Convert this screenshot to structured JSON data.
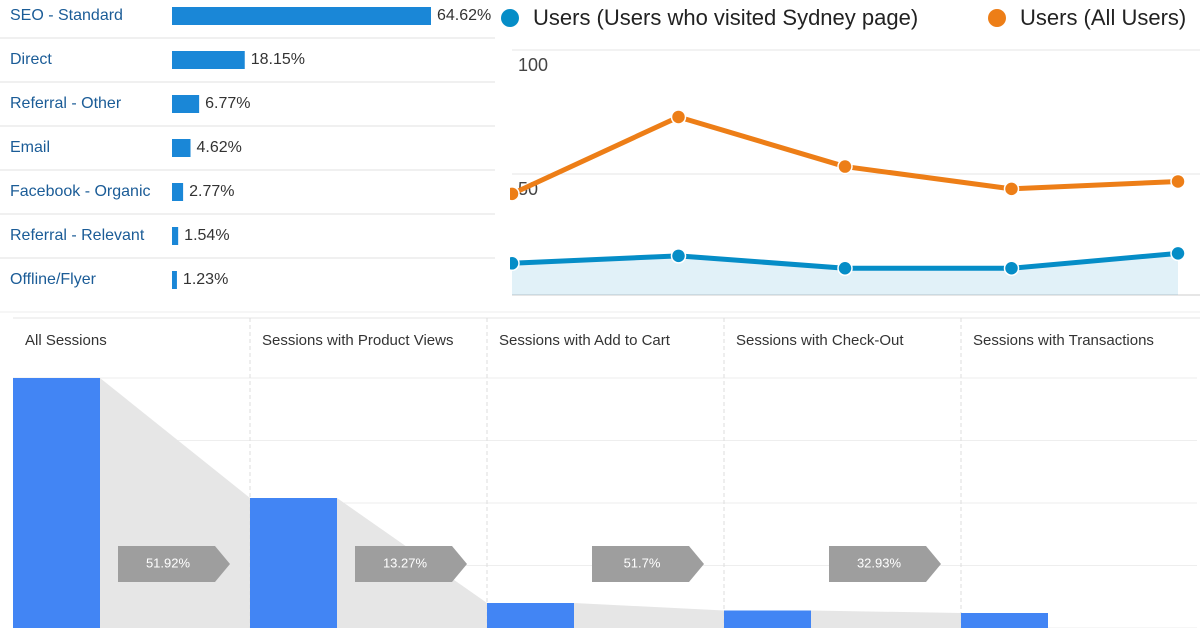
{
  "chart_data": [
    {
      "type": "hbar",
      "categories": [
        "SEO - Standard",
        "Direct",
        "Referral - Other",
        "Email",
        "Facebook - Organic",
        "Referral - Relevant",
        "Offline/Flyer"
      ],
      "values": [
        64.62,
        18.15,
        6.77,
        4.62,
        2.77,
        1.54,
        1.23
      ],
      "value_labels": [
        "64.62%",
        "18.15%",
        "6.77%",
        "4.62%",
        "2.77%",
        "1.54%",
        "1.23%"
      ],
      "color": "#1a87d7"
    },
    {
      "type": "line",
      "categories": [
        null,
        null,
        null,
        null,
        null
      ],
      "series": [
        {
          "name": "Users (Users who visited Sydney page)",
          "color": "#058dc7",
          "values": [
            14,
            17,
            12,
            12,
            18
          ]
        },
        {
          "name": "Users (All Users)",
          "color": "#ed7e17",
          "values": [
            42,
            73,
            53,
            44,
            47
          ]
        }
      ],
      "ylim": [
        0,
        100
      ],
      "yticks": [
        50,
        100
      ],
      "grid": true
    },
    {
      "type": "funnel",
      "categories": [
        "All Sessions",
        "Sessions with Product Views",
        "Sessions with Add to Cart",
        "Sessions with Check-Out",
        "Sessions with Transactions"
      ],
      "values": [
        100,
        52,
        10,
        7,
        6
      ],
      "ylim": [
        0,
        100
      ],
      "color": "#4285f4",
      "rates": [
        51.92,
        13.27,
        51.7,
        32.93
      ],
      "rate_labels": [
        "51.92%",
        "13.27%",
        "51.7%",
        "32.93%"
      ]
    }
  ]
}
